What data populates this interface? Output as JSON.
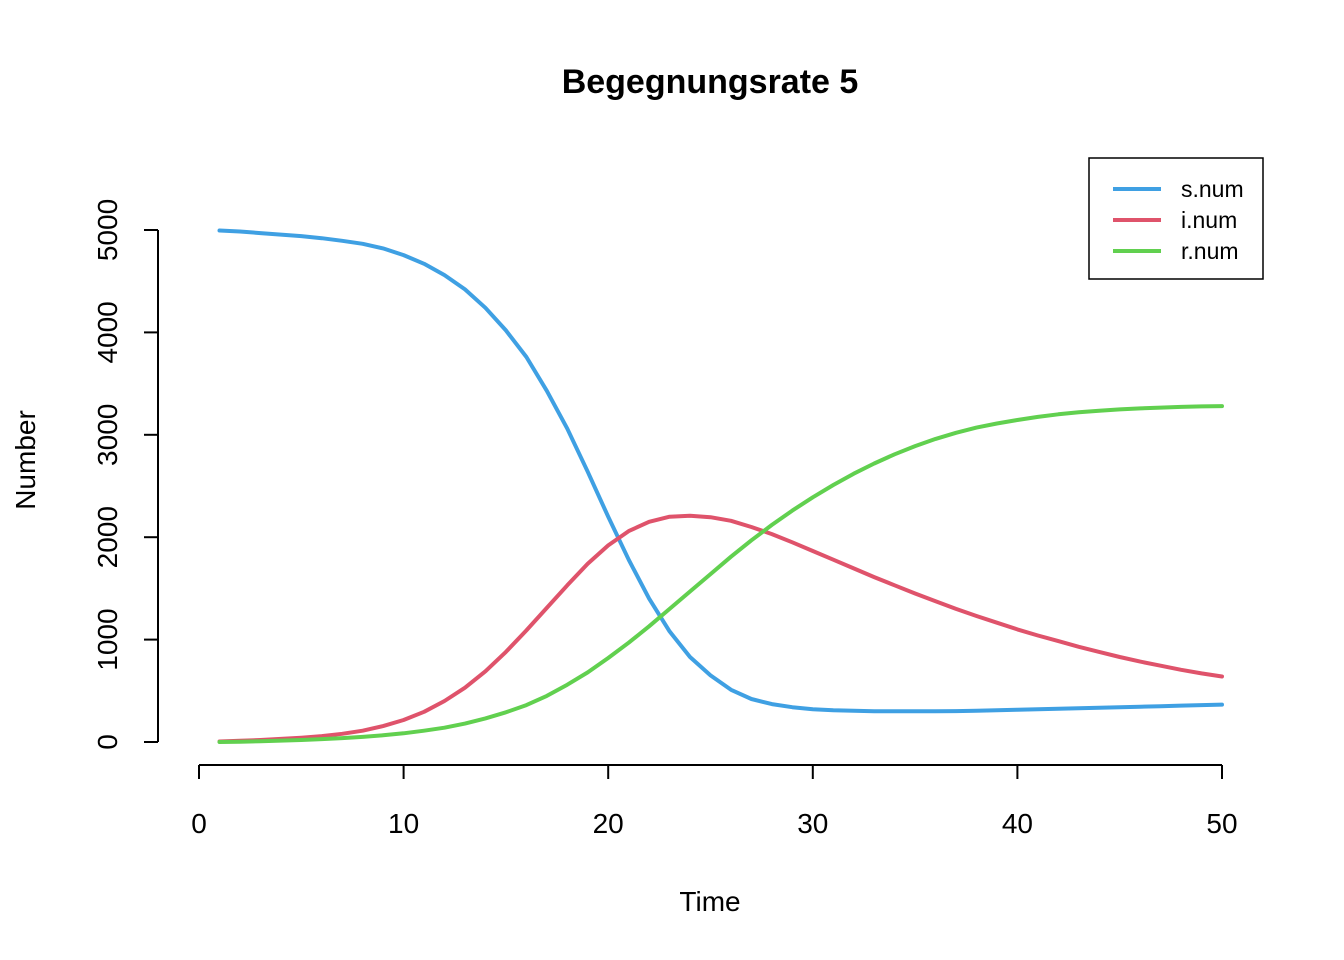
{
  "chart_data": {
    "type": "line",
    "title": "Begegnungsrate 5",
    "xlabel": "Time",
    "ylabel": "Number",
    "xlim": [
      1,
      50
    ],
    "ylim": [
      0,
      5000
    ],
    "x_ticks": [
      0,
      10,
      20,
      30,
      40,
      50
    ],
    "y_ticks": [
      0,
      1000,
      2000,
      3000,
      4000,
      5000
    ],
    "grid": false,
    "legend_position": "top-right",
    "x": [
      1,
      2,
      3,
      4,
      5,
      6,
      7,
      8,
      9,
      10,
      11,
      12,
      13,
      14,
      15,
      16,
      17,
      18,
      19,
      20,
      21,
      22,
      23,
      24,
      25,
      26,
      27,
      28,
      29,
      30,
      31,
      32,
      33,
      34,
      35,
      36,
      37,
      38,
      39,
      40,
      41,
      42,
      43,
      44,
      45,
      46,
      47,
      48,
      49,
      50
    ],
    "series": [
      {
        "name": "s.num",
        "color": "#3FA0E3",
        "values": [
          4995,
          4985,
          4970,
          4955,
          4940,
          4920,
          4895,
          4865,
          4820,
          4755,
          4670,
          4560,
          4420,
          4240,
          4020,
          3760,
          3430,
          3060,
          2640,
          2200,
          1780,
          1400,
          1080,
          830,
          650,
          510,
          420,
          370,
          340,
          320,
          310,
          305,
          300,
          300,
          300,
          300,
          302,
          305,
          310,
          315,
          320,
          325,
          330,
          335,
          340,
          345,
          350,
          355,
          360,
          365
        ]
      },
      {
        "name": "i.num",
        "color": "#DF536B",
        "values": [
          5,
          12,
          20,
          30,
          42,
          58,
          80,
          110,
          155,
          215,
          295,
          400,
          530,
          690,
          880,
          1090,
          1310,
          1530,
          1740,
          1920,
          2060,
          2150,
          2200,
          2210,
          2195,
          2160,
          2100,
          2030,
          1950,
          1865,
          1780,
          1695,
          1610,
          1530,
          1450,
          1375,
          1300,
          1230,
          1165,
          1100,
          1040,
          985,
          930,
          880,
          830,
          785,
          745,
          705,
          670,
          640
        ]
      },
      {
        "name": "r.num",
        "color": "#61D04F",
        "values": [
          0,
          3,
          8,
          14,
          20,
          28,
          38,
          50,
          65,
          85,
          110,
          140,
          180,
          230,
          290,
          360,
          450,
          560,
          680,
          820,
          970,
          1130,
          1300,
          1470,
          1640,
          1810,
          1970,
          2120,
          2260,
          2390,
          2510,
          2620,
          2720,
          2810,
          2890,
          2960,
          3020,
          3070,
          3110,
          3145,
          3175,
          3200,
          3220,
          3235,
          3248,
          3258,
          3266,
          3272,
          3277,
          3280
        ]
      }
    ]
  }
}
